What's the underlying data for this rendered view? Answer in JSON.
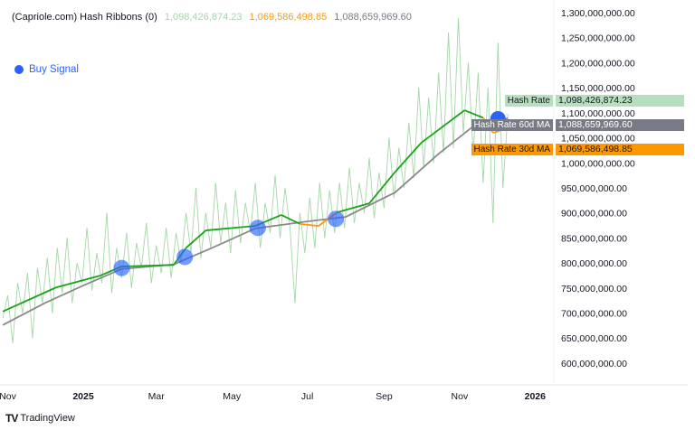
{
  "header": {
    "indicator": "(Capriole.com) Hash Ribbons (0)",
    "value_hash_rate": "1,098,426,874.23",
    "value_ma30": "1,069,586,498.85",
    "value_ma60": "1,088,659,969.60"
  },
  "legend": {
    "buy_signal": "Buy Signal"
  },
  "price_labels": [
    {
      "name": "Hash Rate",
      "value": "1,098,426,874.23",
      "bg": "#b7dfbd",
      "fg": "#131722"
    },
    {
      "name": "Hash Rate 60d MA",
      "value": "1,088,659,969.60",
      "bg": "#787b86",
      "fg": "#ffffff"
    },
    {
      "name": "Hash Rate 30d MA",
      "value": "1,069,586,498.85",
      "bg": "#ff9800",
      "fg": "#131722"
    }
  ],
  "footer": {
    "brand": "TradingView",
    "logo": "TV"
  },
  "colors": {
    "hash_rate": "#a5d6a7",
    "ma30_up": "#1aa31a",
    "ma30_down": "#ff9800",
    "ma60": "#8a8a8a",
    "buy": "#2962ff"
  },
  "chart_data": {
    "type": "line",
    "ylim": [
      580000000,
      1300000000
    ],
    "y_ticks": [
      "1,300,000,000.00",
      "1,250,000,000.00",
      "1,200,000,000.00",
      "1,150,000,000.00",
      "1,100,000,000.00",
      "1,050,000,000.00",
      "1,000,000,000.00",
      "950,000,000.00",
      "900,000,000.00",
      "850,000,000.00",
      "800,000,000.00",
      "750,000,000.00",
      "700,000,000.00",
      "650,000,000.00",
      "600,000,000.00"
    ],
    "x_ticks": [
      {
        "label": "Nov",
        "date": "2024-11-01",
        "bold": false
      },
      {
        "label": "2025",
        "date": "2025-01-01",
        "bold": true
      },
      {
        "label": "Mar",
        "date": "2025-03-01",
        "bold": false
      },
      {
        "label": "May",
        "date": "2025-05-01",
        "bold": false
      },
      {
        "label": "Jul",
        "date": "2025-07-01",
        "bold": false
      },
      {
        "label": "Sep",
        "date": "2025-09-01",
        "bold": false
      },
      {
        "label": "Nov",
        "date": "2025-11-01",
        "bold": false
      },
      {
        "label": "2026",
        "date": "2026-01-01",
        "bold": true
      }
    ],
    "series": [
      {
        "name": "Hash Rate",
        "points": [
          [
            "2024-10-28",
            690
          ],
          [
            "2024-11-01",
            735
          ],
          [
            "2024-11-05",
            640
          ],
          [
            "2024-11-09",
            760
          ],
          [
            "2024-11-13",
            700
          ],
          [
            "2024-11-17",
            780
          ],
          [
            "2024-11-21",
            650
          ],
          [
            "2024-11-25",
            790
          ],
          [
            "2024-11-29",
            720
          ],
          [
            "2024-12-03",
            810
          ],
          [
            "2024-12-07",
            700
          ],
          [
            "2024-12-11",
            830
          ],
          [
            "2024-12-15",
            740
          ],
          [
            "2024-12-19",
            850
          ],
          [
            "2024-12-23",
            720
          ],
          [
            "2024-12-27",
            800
          ],
          [
            "2024-12-31",
            760
          ],
          [
            "2025-01-04",
            870
          ],
          [
            "2025-01-08",
            745
          ],
          [
            "2025-01-12",
            820
          ],
          [
            "2025-01-16",
            760
          ],
          [
            "2025-01-20",
            900
          ],
          [
            "2025-01-24",
            740
          ],
          [
            "2025-01-28",
            830
          ],
          [
            "2025-02-01",
            770
          ],
          [
            "2025-02-05",
            860
          ],
          [
            "2025-02-09",
            750
          ],
          [
            "2025-02-13",
            840
          ],
          [
            "2025-02-17",
            790
          ],
          [
            "2025-02-21",
            880
          ],
          [
            "2025-02-25",
            760
          ],
          [
            "2025-03-01",
            835
          ],
          [
            "2025-03-05",
            780
          ],
          [
            "2025-03-09",
            870
          ],
          [
            "2025-03-13",
            770
          ],
          [
            "2025-03-17",
            860
          ],
          [
            "2025-03-21",
            800
          ],
          [
            "2025-03-25",
            900
          ],
          [
            "2025-03-29",
            820
          ],
          [
            "2025-04-02",
            950
          ],
          [
            "2025-04-06",
            810
          ],
          [
            "2025-04-10",
            900
          ],
          [
            "2025-04-14",
            830
          ],
          [
            "2025-04-18",
            960
          ],
          [
            "2025-04-22",
            840
          ],
          [
            "2025-04-26",
            920
          ],
          [
            "2025-04-30",
            820
          ],
          [
            "2025-05-04",
            945
          ],
          [
            "2025-05-08",
            840
          ],
          [
            "2025-05-12",
            920
          ],
          [
            "2025-05-16",
            860
          ],
          [
            "2025-05-20",
            960
          ],
          [
            "2025-05-24",
            830
          ],
          [
            "2025-05-28",
            920
          ],
          [
            "2025-06-01",
            860
          ],
          [
            "2025-06-05",
            975
          ],
          [
            "2025-06-09",
            850
          ],
          [
            "2025-06-13",
            950
          ],
          [
            "2025-06-17",
            870
          ],
          [
            "2025-06-21",
            720
          ],
          [
            "2025-06-25",
            900
          ],
          [
            "2025-06-29",
            820
          ],
          [
            "2025-07-03",
            930
          ],
          [
            "2025-07-07",
            830
          ],
          [
            "2025-07-11",
            960
          ],
          [
            "2025-07-15",
            850
          ],
          [
            "2025-07-19",
            945
          ],
          [
            "2025-07-23",
            860
          ],
          [
            "2025-07-27",
            960
          ],
          [
            "2025-07-31",
            870
          ],
          [
            "2025-08-04",
            990
          ],
          [
            "2025-08-08",
            880
          ],
          [
            "2025-08-12",
            960
          ],
          [
            "2025-08-16",
            900
          ],
          [
            "2025-08-20",
            1010
          ],
          [
            "2025-08-24",
            890
          ],
          [
            "2025-08-28",
            980
          ],
          [
            "2025-09-01",
            910
          ],
          [
            "2025-09-05",
            1050
          ],
          [
            "2025-09-09",
            930
          ],
          [
            "2025-09-13",
            1030
          ],
          [
            "2025-09-17",
            950
          ],
          [
            "2025-09-21",
            1080
          ],
          [
            "2025-09-25",
            970
          ],
          [
            "2025-09-29",
            1150
          ],
          [
            "2025-10-03",
            990
          ],
          [
            "2025-10-07",
            1130
          ],
          [
            "2025-10-11",
            1000
          ],
          [
            "2025-10-15",
            1180
          ],
          [
            "2025-10-19",
            1020
          ],
          [
            "2025-10-23",
            1260
          ],
          [
            "2025-10-27",
            1030
          ],
          [
            "2025-10-31",
            1290
          ],
          [
            "2025-11-04",
            1060
          ],
          [
            "2025-11-08",
            1200
          ],
          [
            "2025-11-12",
            1020
          ],
          [
            "2025-11-16",
            1180
          ],
          [
            "2025-11-20",
            960
          ],
          [
            "2025-11-24",
            1150
          ],
          [
            "2025-11-28",
            880
          ],
          [
            "2025-12-02",
            1240
          ],
          [
            "2025-12-06",
            950
          ],
          [
            "2025-12-10",
            1098
          ]
        ]
      },
      {
        "name": "Hash Rate 60d MA",
        "points": [
          [
            "2024-10-28",
            676
          ],
          [
            "2024-12-01",
            720
          ],
          [
            "2025-01-01",
            755
          ],
          [
            "2025-02-01",
            788
          ],
          [
            "2025-03-15",
            797
          ],
          [
            "2025-04-15",
            830
          ],
          [
            "2025-05-20",
            869
          ],
          [
            "2025-07-01",
            883
          ],
          [
            "2025-08-01",
            892
          ],
          [
            "2025-09-10",
            941
          ],
          [
            "2025-10-15",
            1018
          ],
          [
            "2025-11-12",
            1073
          ],
          [
            "2025-11-28",
            1082
          ],
          [
            "2025-12-10",
            1089
          ]
        ]
      },
      {
        "name": "Hash Rate 30d MA",
        "points": [
          [
            "2024-10-28",
            703
          ],
          [
            "2024-12-10",
            751
          ],
          [
            "2025-01-15",
            775
          ],
          [
            "2025-02-01",
            793
          ],
          [
            "2025-03-15",
            796
          ],
          [
            "2025-03-25",
            830
          ],
          [
            "2025-04-10",
            865
          ],
          [
            "2025-05-20",
            874
          ],
          [
            "2025-06-10",
            896
          ],
          [
            "2025-06-25",
            878
          ],
          [
            "2025-07-10",
            874
          ],
          [
            "2025-07-25",
            901
          ],
          [
            "2025-08-20",
            919
          ],
          [
            "2025-09-10",
            982
          ],
          [
            "2025-10-01",
            1040
          ],
          [
            "2025-11-05",
            1105
          ],
          [
            "2025-11-20",
            1090
          ],
          [
            "2025-11-28",
            1060
          ],
          [
            "2025-12-10",
            1069
          ]
        ]
      }
    ],
    "buy_signals": [
      {
        "date": "2025-02-01",
        "value": 790,
        "confirmed": true
      },
      {
        "date": "2025-03-24",
        "value": 812,
        "confirmed": true
      },
      {
        "date": "2025-05-22",
        "value": 870,
        "confirmed": true
      },
      {
        "date": "2025-07-24",
        "value": 888,
        "confirmed": true
      },
      {
        "date": "2025-12-02",
        "value": 1088,
        "confirmed": false
      }
    ],
    "value_unit_in_points": "millions"
  }
}
